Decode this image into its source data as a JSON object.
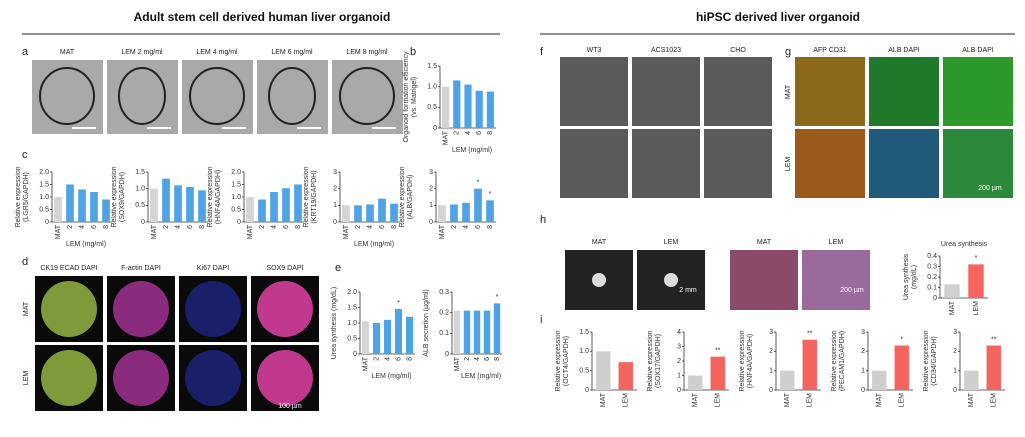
{
  "headings": {
    "left": "Adult stem cell derived human liver organoid",
    "right": "hiPSC derived liver organoid"
  },
  "panel_letters": [
    "a",
    "b",
    "c",
    "d",
    "e",
    "f",
    "g",
    "h",
    "i"
  ],
  "panel_a": {
    "labels": [
      "MAT",
      "LEM 2 mg/ml",
      "LEM 4 mg/ml",
      "LEM 6 mg/ml",
      "LEM 8 mg/ml"
    ]
  },
  "panel_d": {
    "columns": [
      "CK19 ECAD DAPI",
      "F-actin DAPI",
      "Ki67 DAPI",
      "SOX9 DAPI"
    ],
    "rows": [
      "MAT",
      "LEM"
    ],
    "scale": "100 µm"
  },
  "panel_f": {
    "columns": [
      "WT3",
      "ACS1023",
      "CHO"
    ]
  },
  "panel_g": {
    "columns": [
      "AFP CD31",
      "ALB DAPI",
      "ALB DAPI"
    ],
    "rows": [
      "MAT",
      "LEM"
    ],
    "scale": "200 µm"
  },
  "panel_h": {
    "labels": [
      "MAT",
      "LEM",
      "MAT",
      "LEM"
    ],
    "scales": [
      "2 mm",
      "200 µm"
    ]
  },
  "chart_data": [
    {
      "type": "bar",
      "ylabel": [
        "Organoid formation efficiency",
        "(vs. Matrigel)"
      ],
      "xlabel": "LEM (mg/ml)",
      "categories": [
        "MAT",
        "2",
        "4",
        "6",
        "8"
      ],
      "values": [
        1.0,
        1.15,
        1.05,
        0.9,
        0.88
      ],
      "bar_colors": [
        "#d4d4d4",
        "#4da3e6",
        "#4da3e6",
        "#4da3e6",
        "#4da3e6"
      ],
      "ylim": [
        0,
        1.5
      ],
      "yticks": [
        0,
        0.5,
        {
          "value": 1,
          "label": "1.0"
        },
        1.5
      ]
    },
    {
      "type": "bar",
      "ylabel": [
        "Relative expression",
        "(LGR5/GAPDH)"
      ],
      "xlabel": "LEM (mg/ml)",
      "categories": [
        "MAT",
        "2",
        "4",
        "6",
        "8"
      ],
      "values": [
        1.0,
        1.5,
        1.3,
        1.2,
        0.9
      ],
      "bar_colors": [
        "#d4d4d4",
        "#4da3e6",
        "#4da3e6",
        "#4da3e6",
        "#4da3e6"
      ],
      "ylim": [
        0,
        2
      ],
      "yticks": [
        0,
        0.5,
        {
          "value": 1,
          "label": "1.0"
        },
        1.5,
        {
          "value": 2,
          "label": "2.0"
        }
      ]
    },
    {
      "type": "bar",
      "ylabel": [
        "Relative expression",
        "(SOX9/GAPDH)"
      ],
      "categories": [
        "MAT",
        "2",
        "4",
        "6",
        "8"
      ],
      "values": [
        1.0,
        1.3,
        1.1,
        1.05,
        0.95
      ],
      "bar_colors": [
        "#d4d4d4",
        "#4da3e6",
        "#4da3e6",
        "#4da3e6",
        "#4da3e6"
      ],
      "ylim": [
        0,
        1.5
      ],
      "yticks": [
        0,
        0.5,
        {
          "value": 1,
          "label": "1.0"
        },
        1.5
      ]
    },
    {
      "type": "bar",
      "ylabel": [
        "Relative expression",
        "(HNF4A/GAPDH)"
      ],
      "categories": [
        "MAT",
        "2",
        "4",
        "6",
        "8"
      ],
      "values": [
        1.0,
        0.9,
        1.2,
        1.35,
        1.5
      ],
      "bar_colors": [
        "#d4d4d4",
        "#4da3e6",
        "#4da3e6",
        "#4da3e6",
        "#4da3e6"
      ],
      "ylim": [
        0,
        2
      ],
      "yticks": [
        0,
        0.5,
        {
          "value": 1,
          "label": "1.0"
        },
        1.5,
        {
          "value": 2,
          "label": "2.0"
        }
      ]
    },
    {
      "type": "bar",
      "ylabel": [
        "Relative expression",
        "(KRT19/GAPDH)"
      ],
      "xlabel": "LEM (mg/ml)",
      "categories": [
        "MAT",
        "2",
        "4",
        "6",
        "8"
      ],
      "values": [
        1.0,
        1.0,
        1.05,
        1.4,
        1.1
      ],
      "bar_colors": [
        "#d4d4d4",
        "#4da3e6",
        "#4da3e6",
        "#4da3e6",
        "#4da3e6"
      ],
      "ylim": [
        0,
        3
      ],
      "yticks": [
        0,
        1,
        2,
        3
      ]
    },
    {
      "type": "bar",
      "ylabel": [
        "Relative expression",
        "(ALB/GAPDH)"
      ],
      "categories": [
        "MAT",
        "2",
        "4",
        "6",
        "8"
      ],
      "values": [
        1.0,
        1.05,
        1.15,
        2.0,
        1.3
      ],
      "bar_colors": [
        "#d4d4d4",
        "#4da3e6",
        "#4da3e6",
        "#4da3e6",
        "#4da3e6"
      ],
      "ylim": [
        0,
        3
      ],
      "yticks": [
        0,
        1,
        2,
        3
      ],
      "significance": [
        null,
        null,
        null,
        "*",
        "*"
      ]
    },
    {
      "type": "bar",
      "ylabel": [
        "Urea synthesis (mg/dL)"
      ],
      "xlabel": "LEM (mg/ml)",
      "categories": [
        "MAT",
        "2",
        "4",
        "6",
        "8"
      ],
      "values": [
        1.05,
        1.0,
        1.1,
        1.45,
        1.2
      ],
      "bar_colors": [
        "#d4d4d4",
        "#4da3e6",
        "#4da3e6",
        "#4da3e6",
        "#4da3e6"
      ],
      "ylim": [
        0,
        2
      ],
      "yticks": [
        0,
        0.5,
        {
          "value": 1,
          "label": "1.0"
        },
        1.5,
        {
          "value": 2,
          "label": "2.0"
        }
      ],
      "significance": [
        null,
        null,
        null,
        "*",
        null
      ]
    },
    {
      "type": "bar",
      "ylabel": [
        "ALB secretion (µg/ml)"
      ],
      "xlabel": "LEM (mg/ml)",
      "categories": [
        "MAT",
        "2",
        "4",
        "6",
        "8"
      ],
      "values": [
        0.21,
        0.21,
        0.21,
        0.21,
        0.245
      ],
      "bar_colors": [
        "#d4d4d4",
        "#4da3e6",
        "#4da3e6",
        "#4da3e6",
        "#4da3e6"
      ],
      "ylim": [
        0,
        0.3
      ],
      "yticks": [
        0,
        0.1,
        0.2,
        0.3
      ],
      "significance": [
        null,
        null,
        null,
        null,
        "*"
      ]
    },
    {
      "type": "bar",
      "title": "Urea synthesis",
      "ylabel": [
        "Urea synthesis",
        "(mg/dL)"
      ],
      "categories": [
        "MAT",
        "LEM"
      ],
      "values": [
        0.13,
        0.32
      ],
      "bar_colors": [
        "#cfcfcf",
        "#f4635e"
      ],
      "ylim": [
        0,
        0.4
      ],
      "yticks": [
        0,
        0.1,
        0.2,
        0.3,
        0.4
      ],
      "significance": [
        null,
        "*"
      ]
    },
    {
      "type": "bar",
      "ylabel": [
        "Relative expression",
        "(OCT4/GAPDH)"
      ],
      "categories": [
        "MAT",
        "LEM"
      ],
      "values": [
        1.0,
        0.72
      ],
      "bar_colors": [
        "#cfcfcf",
        "#f4635e"
      ],
      "ylim": [
        0,
        1.5
      ],
      "yticks": [
        0,
        0.5,
        {
          "value": 1,
          "label": "1.0"
        },
        1.5
      ]
    },
    {
      "type": "bar",
      "ylabel": [
        "Relative expression",
        "(SOX17/GAPDH)"
      ],
      "categories": [
        "MAT",
        "LEM"
      ],
      "values": [
        1.0,
        2.3
      ],
      "bar_colors": [
        "#cfcfcf",
        "#f4635e"
      ],
      "ylim": [
        0,
        4
      ],
      "yticks": [
        0,
        1,
        2,
        3,
        4
      ],
      "significance": [
        null,
        "**"
      ]
    },
    {
      "type": "bar",
      "ylabel": [
        "Relative expression",
        "(HNF4A/GAPDH)"
      ],
      "categories": [
        "MAT",
        "LEM"
      ],
      "values": [
        1.0,
        2.6
      ],
      "bar_colors": [
        "#cfcfcf",
        "#f4635e"
      ],
      "ylim": [
        0,
        3
      ],
      "yticks": [
        0,
        1,
        2,
        3
      ],
      "significance": [
        null,
        "**"
      ]
    },
    {
      "type": "bar",
      "ylabel": [
        "Relative expression",
        "(PECAM1/GAPDH)"
      ],
      "categories": [
        "MAT",
        "LEM"
      ],
      "values": [
        1.0,
        2.3
      ],
      "bar_colors": [
        "#cfcfcf",
        "#f4635e"
      ],
      "ylim": [
        0,
        3
      ],
      "yticks": [
        0,
        1,
        2,
        3
      ],
      "significance": [
        null,
        "*"
      ]
    },
    {
      "type": "bar",
      "ylabel": [
        "Relative expression",
        "(CD34/GAPDH)"
      ],
      "categories": [
        "MAT",
        "LEM"
      ],
      "values": [
        1.0,
        2.3
      ],
      "bar_colors": [
        "#cfcfcf",
        "#f4635e"
      ],
      "ylim": [
        0,
        3
      ],
      "yticks": [
        0,
        1,
        2,
        3
      ],
      "significance": [
        null,
        "**"
      ]
    }
  ]
}
